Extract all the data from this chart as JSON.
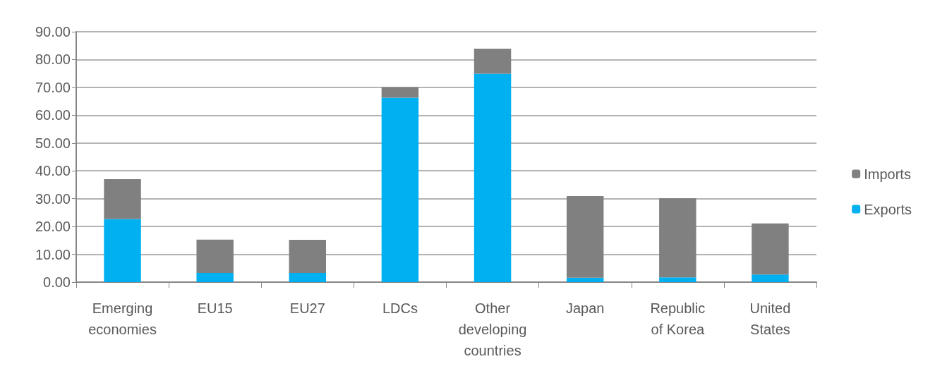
{
  "chart_data": {
    "type": "bar",
    "stacked": true,
    "categories": [
      "Emerging economies",
      "EU15",
      "EU27",
      "LDCs",
      "Other developing countries",
      "Japan",
      "Republic of Korea",
      "United States"
    ],
    "series": [
      {
        "name": "Exports",
        "color": "#00b0f0",
        "values": [
          22.7,
          3.3,
          3.3,
          66.3,
          74.9,
          1.6,
          1.7,
          2.7
        ]
      },
      {
        "name": "Imports",
        "color": "#808080",
        "values": [
          14.3,
          12.0,
          11.9,
          3.8,
          9.0,
          29.3,
          28.5,
          18.4
        ]
      }
    ],
    "ylim": [
      0,
      90
    ],
    "yticks": [
      {
        "value": 0,
        "label": "0.00"
      },
      {
        "value": 10,
        "label": "10.00"
      },
      {
        "value": 20,
        "label": "20.00"
      },
      {
        "value": 30,
        "label": "30.00"
      },
      {
        "value": 40,
        "label": "40.00"
      },
      {
        "value": 50,
        "label": "50.00"
      },
      {
        "value": 60,
        "label": "60.00"
      },
      {
        "value": 70,
        "label": "70.00"
      },
      {
        "value": 80,
        "label": "80.00"
      },
      {
        "value": 90,
        "label": "90.00"
      }
    ],
    "grid": "y",
    "legend": "right"
  }
}
